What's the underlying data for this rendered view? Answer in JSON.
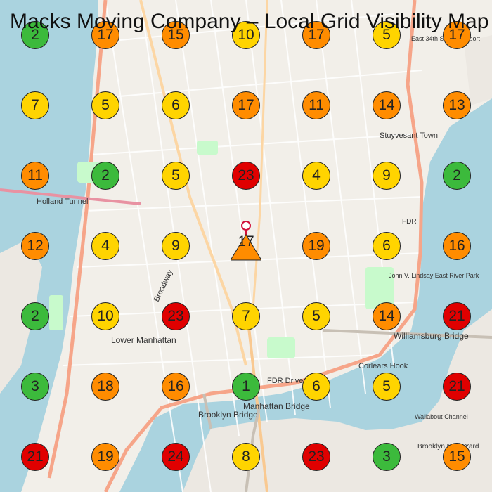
{
  "title": "Macks Moving Company – Local Grid Visibility Map",
  "colors": {
    "green": "#3cba3c",
    "yellow": "#ffd400",
    "orange": "#ff8c00",
    "red": "#e00000",
    "water": "#aad3df",
    "land": "#f2efe9"
  },
  "grid": [
    [
      "2",
      "17",
      "15",
      "10",
      "17",
      "5",
      "17"
    ],
    [
      "7",
      "5",
      "6",
      "17",
      "11",
      "14",
      "13"
    ],
    [
      "11",
      "2",
      "5",
      "23",
      "4",
      "9",
      "2"
    ],
    [
      "12",
      "4",
      "9",
      "17",
      "19",
      "6",
      "16"
    ],
    [
      "2",
      "10",
      "23",
      "7",
      "5",
      "14",
      "21"
    ],
    [
      "3",
      "18",
      "16",
      "1",
      "6",
      "5",
      "21"
    ],
    [
      "21",
      "19",
      "24",
      "8",
      "23",
      "3",
      "15"
    ]
  ],
  "grid_colors": [
    [
      "green",
      "orange",
      "orange",
      "yellow",
      "orange",
      "yellow",
      "orange"
    ],
    [
      "yellow",
      "yellow",
      "yellow",
      "orange",
      "orange",
      "orange",
      "orange"
    ],
    [
      "orange",
      "green",
      "yellow",
      "red",
      "yellow",
      "yellow",
      "green"
    ],
    [
      "orange",
      "yellow",
      "yellow",
      "orange",
      "orange",
      "yellow",
      "orange"
    ],
    [
      "green",
      "yellow",
      "red",
      "yellow",
      "yellow",
      "orange",
      "red"
    ],
    [
      "green",
      "orange",
      "orange",
      "green",
      "yellow",
      "yellow",
      "red"
    ],
    [
      "red",
      "orange",
      "red",
      "yellow",
      "red",
      "green",
      "orange"
    ]
  ],
  "center_marker": {
    "label": "17",
    "color": "orange",
    "icon": "location-pin-icon"
  },
  "map_labels": {
    "holland_tunnel": "Holland Tunnel",
    "lower_manhattan": "Lower Manhattan",
    "williamsburg_bridge": "Williamsburg Bridge",
    "manhattan_bridge": "Manhattan Bridge",
    "brooklyn_bridge": "Brooklyn Bridge",
    "stuyvesant_town": "Stuyvesant Town",
    "corlears_hook": "Corlears Hook",
    "fdr_drive": "FDR Drive",
    "broadway": "Broadway",
    "john_v_lindsay": "John V. Lindsay East River Park",
    "east_34th": "East 34th Street Heliport",
    "wallabout_channel": "Wallabout Channel",
    "brooklyn_navy_yard": "Brooklyn Navy Yard",
    "fdr": "FDR"
  }
}
